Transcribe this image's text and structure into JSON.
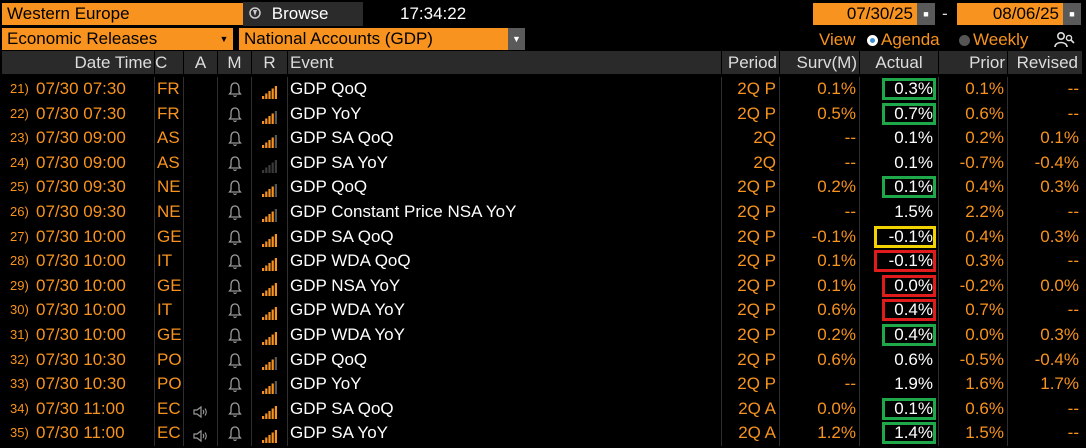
{
  "header": {
    "region": "Western Europe",
    "browse_label": "Browse",
    "clock": "17:34:22",
    "date_from": "07/30/25",
    "date_sep": "-",
    "date_to": "08/06/25",
    "category": "Economic Releases",
    "subcategory": "National Accounts (GDP)",
    "view_label": "View",
    "view_agenda": "Agenda",
    "view_weekly": "Weekly"
  },
  "columns": {
    "datetime": "Date Time",
    "c": "C",
    "a": "A",
    "m": "M",
    "r": "R",
    "event": "Event",
    "period": "Period",
    "surv": "Surv(M)",
    "actual": "Actual",
    "prior": "Prior",
    "revised": "Revised"
  },
  "colors": {
    "accent": "#f7931e",
    "green": "#1fa84a",
    "yellow": "#f2d200",
    "red": "#e01b1b"
  },
  "rows": [
    {
      "num": "21)",
      "datetime": "07/30 07:30",
      "c": "FR",
      "speaker": false,
      "rel": 4,
      "event": "GDP QoQ",
      "period": "2Q P",
      "surv": "0.1%",
      "actual": "0.3%",
      "prior": "0.1%",
      "revised": "--",
      "box": "green"
    },
    {
      "num": "22)",
      "datetime": "07/30 07:30",
      "c": "FR",
      "speaker": false,
      "rel": 3,
      "event": "GDP YoY",
      "period": "2Q P",
      "surv": "0.5%",
      "actual": "0.7%",
      "prior": "0.6%",
      "revised": "--",
      "box": "green"
    },
    {
      "num": "23)",
      "datetime": "07/30 09:00",
      "c": "AS",
      "speaker": false,
      "rel": 3,
      "event": "GDP SA QoQ",
      "period": "2Q",
      "surv": "--",
      "actual": "0.1%",
      "prior": "0.2%",
      "revised": "0.1%",
      "box": ""
    },
    {
      "num": "24)",
      "datetime": "07/30 09:00",
      "c": "AS",
      "speaker": false,
      "rel": 0,
      "event": "GDP SA YoY",
      "period": "2Q",
      "surv": "--",
      "actual": "0.1%",
      "prior": "-0.7%",
      "revised": "-0.4%",
      "box": ""
    },
    {
      "num": "25)",
      "datetime": "07/30 09:30",
      "c": "NE",
      "speaker": false,
      "rel": 3,
      "event": "GDP QoQ",
      "period": "2Q P",
      "surv": "0.2%",
      "actual": "0.1%",
      "prior": "0.4%",
      "revised": "0.3%",
      "box": "green"
    },
    {
      "num": "26)",
      "datetime": "07/30 09:30",
      "c": "NE",
      "speaker": false,
      "rel": 3,
      "event": "GDP Constant Price NSA YoY",
      "period": "2Q P",
      "surv": "--",
      "actual": "1.5%",
      "prior": "2.2%",
      "revised": "--",
      "box": ""
    },
    {
      "num": "27)",
      "datetime": "07/30 10:00",
      "c": "GE",
      "speaker": false,
      "rel": 4,
      "event": "GDP SA QoQ",
      "period": "2Q P",
      "surv": "-0.1%",
      "actual": "-0.1%",
      "prior": "0.4%",
      "revised": "0.3%",
      "box": "yellow"
    },
    {
      "num": "28)",
      "datetime": "07/30 10:00",
      "c": "IT",
      "speaker": false,
      "rel": 4,
      "event": "GDP WDA QoQ",
      "period": "2Q P",
      "surv": "0.1%",
      "actual": "-0.1%",
      "prior": "0.3%",
      "revised": "--",
      "box": "red"
    },
    {
      "num": "29)",
      "datetime": "07/30 10:00",
      "c": "GE",
      "speaker": false,
      "rel": 4,
      "event": "GDP NSA YoY",
      "period": "2Q P",
      "surv": "0.1%",
      "actual": "0.0%",
      "prior": "-0.2%",
      "revised": "0.0%",
      "box": "red"
    },
    {
      "num": "30)",
      "datetime": "07/30 10:00",
      "c": "IT",
      "speaker": false,
      "rel": 4,
      "event": "GDP WDA YoY",
      "period": "2Q P",
      "surv": "0.6%",
      "actual": "0.4%",
      "prior": "0.7%",
      "revised": "--",
      "box": "red"
    },
    {
      "num": "31)",
      "datetime": "07/30 10:00",
      "c": "GE",
      "speaker": false,
      "rel": 4,
      "event": "GDP WDA YoY",
      "period": "2Q P",
      "surv": "0.2%",
      "actual": "0.4%",
      "prior": "0.0%",
      "revised": "0.3%",
      "box": "green"
    },
    {
      "num": "32)",
      "datetime": "07/30 10:30",
      "c": "PO",
      "speaker": false,
      "rel": 3,
      "event": "GDP QoQ",
      "period": "2Q P",
      "surv": "0.6%",
      "actual": "0.6%",
      "prior": "-0.5%",
      "revised": "-0.4%",
      "box": ""
    },
    {
      "num": "33)",
      "datetime": "07/30 10:30",
      "c": "PO",
      "speaker": false,
      "rel": 3,
      "event": "GDP YoY",
      "period": "2Q P",
      "surv": "--",
      "actual": "1.9%",
      "prior": "1.6%",
      "revised": "1.7%",
      "box": ""
    },
    {
      "num": "34)",
      "datetime": "07/30 11:00",
      "c": "EC",
      "speaker": true,
      "rel": 4,
      "event": "GDP SA QoQ",
      "period": "2Q A",
      "surv": "0.0%",
      "actual": "0.1%",
      "prior": "0.6%",
      "revised": "--",
      "box": "green"
    },
    {
      "num": "35)",
      "datetime": "07/30 11:00",
      "c": "EC",
      "speaker": true,
      "rel": 4,
      "event": "GDP SA YoY",
      "period": "2Q A",
      "surv": "1.2%",
      "actual": "1.4%",
      "prior": "1.5%",
      "revised": "--",
      "box": "green"
    }
  ]
}
